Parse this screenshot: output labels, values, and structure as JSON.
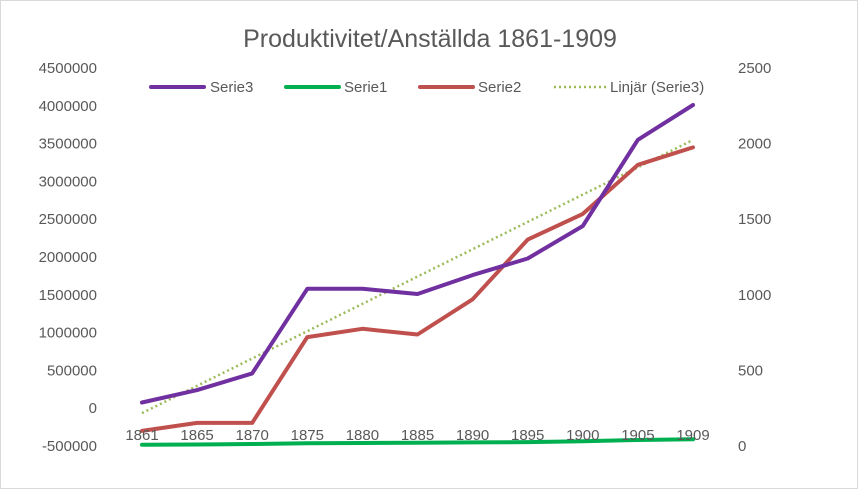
{
  "chart_data": {
    "type": "line",
    "title": "Produktivitet/Anställda 1861-1909",
    "categories": [
      "1861",
      "1865",
      "1870",
      "1875",
      "1880",
      "1885",
      "1890",
      "1895",
      "1900",
      "1905",
      "1909"
    ],
    "y_left": {
      "min": -500000,
      "max": 4500000,
      "step": 500000,
      "tick_labels": [
        "-500000",
        "0",
        "500000",
        "1000000",
        "1500000",
        "2000000",
        "2500000",
        "3000000",
        "3500000",
        "4000000",
        "4500000"
      ]
    },
    "y_right": {
      "min": 0,
      "max": 2500,
      "step": 500,
      "tick_labels": [
        "0",
        "500",
        "1000",
        "1500",
        "2000",
        "2500"
      ]
    },
    "series": [
      {
        "name": "Serie3",
        "axis": "left",
        "color": "#7030a0",
        "style": "solid",
        "values": [
          75000,
          240000,
          460000,
          1580000,
          1580000,
          1510000,
          1760000,
          1980000,
          2410000,
          3550000,
          4010000
        ]
      },
      {
        "name": "Serie1",
        "axis": "right",
        "color": "#00b050",
        "style": "solid",
        "values": [
          8,
          10,
          13,
          18,
          20,
          21,
          24,
          26,
          31,
          40,
          44
        ]
      },
      {
        "name": "Serie2",
        "axis": "left",
        "color": "#c0504d",
        "style": "solid",
        "values": [
          -300000,
          -195000,
          -195000,
          940000,
          1050000,
          975000,
          1440000,
          2230000,
          2570000,
          3220000,
          3450000
        ]
      },
      {
        "name": "Linjär (Serie3)",
        "axis": "left",
        "color": "#9bbb59",
        "style": "dotted",
        "trendline_of": "Serie3"
      }
    ],
    "legend": "top",
    "grid": false
  }
}
